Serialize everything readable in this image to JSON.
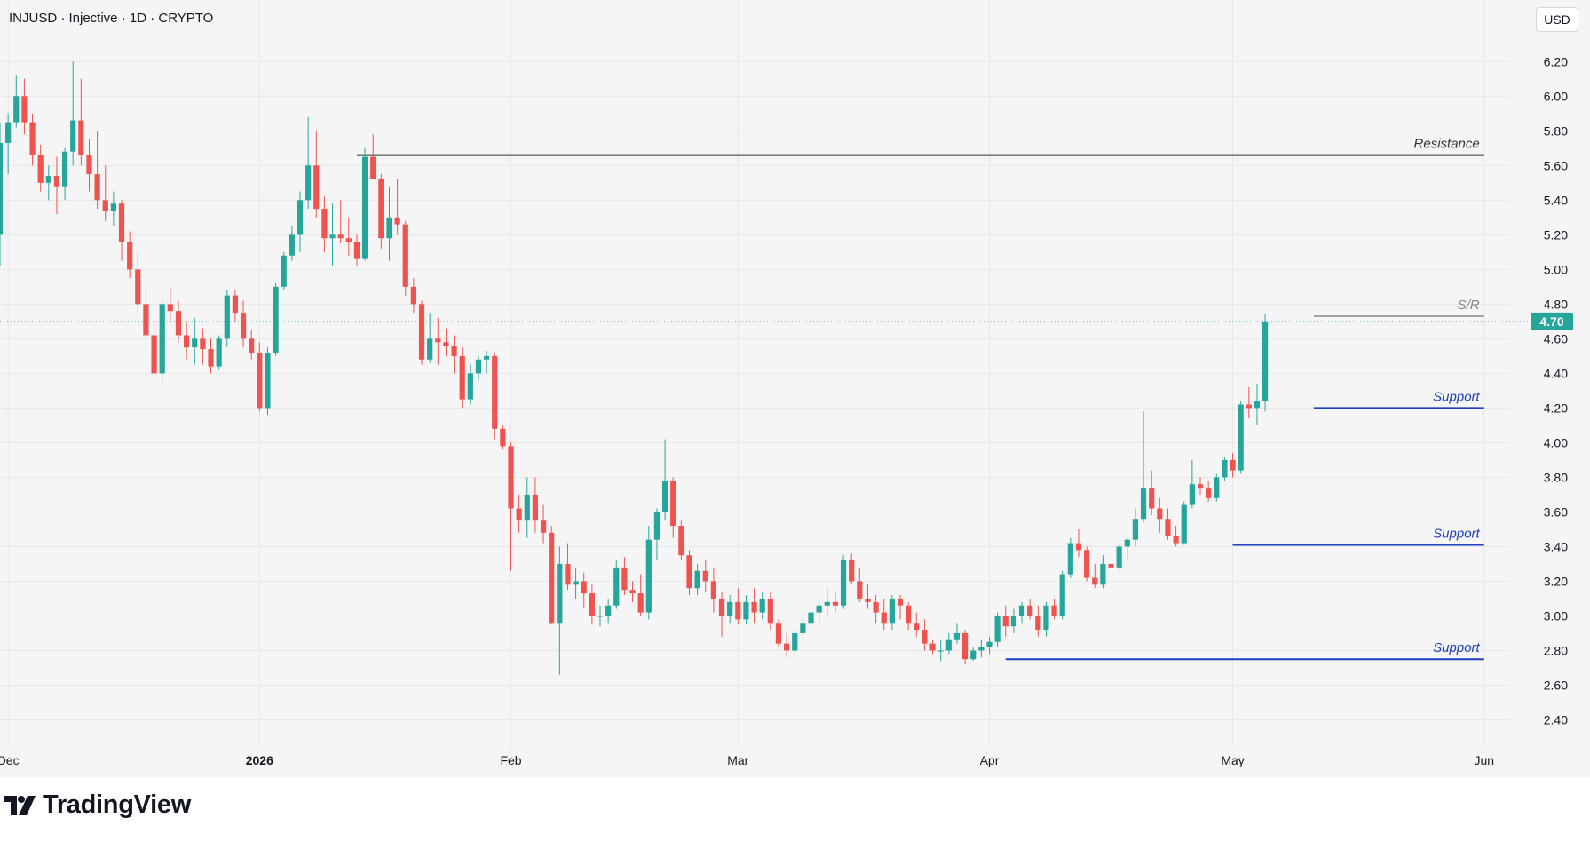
{
  "header": {
    "title": "INJUSD · Injective · 1D · CRYPTO"
  },
  "currency": "USD",
  "brand": {
    "logo_text": "TradingView"
  },
  "colors": {
    "up": "#26a69a",
    "down": "#ef5350",
    "support": "#1d3fbf",
    "resistance": "#333333",
    "sr": "#888888",
    "grid": "#e6e6e6",
    "background": "#f5f5f5"
  },
  "chart_data": {
    "type": "candlestick",
    "symbol": "INJUSD",
    "interval": "1D",
    "y_axis": {
      "min": 2.3,
      "max": 6.35,
      "ticks": [
        "2.40",
        "2.60",
        "2.80",
        "3.00",
        "3.20",
        "3.40",
        "3.60",
        "3.80",
        "4.00",
        "4.20",
        "4.40",
        "4.60",
        "4.80",
        "5.00",
        "5.20",
        "5.40",
        "5.60",
        "5.80",
        "6.00",
        "6.20"
      ]
    },
    "x_axis": {
      "start": "2025-11-30",
      "end": "2026-06-03",
      "ticks": [
        {
          "date": "2025-12-01",
          "label": "Dec",
          "bold": false
        },
        {
          "date": "2026-01-01",
          "label": "2026",
          "bold": true
        },
        {
          "date": "2026-02-01",
          "label": "Feb",
          "bold": false
        },
        {
          "date": "2026-03-01",
          "label": "Mar",
          "bold": false
        },
        {
          "date": "2026-04-01",
          "label": "Apr",
          "bold": false
        },
        {
          "date": "2026-05-01",
          "label": "May",
          "bold": false
        },
        {
          "date": "2026-06-01",
          "label": "Jun",
          "bold": false
        }
      ]
    },
    "last_price": {
      "value": 4.7,
      "label": "4.70"
    },
    "levels": [
      {
        "label": "Resistance",
        "price": 5.66,
        "start": "2026-01-13",
        "end": "2026-06-01",
        "kind": "resistance"
      },
      {
        "label": "S/R",
        "price": 4.73,
        "start": "2026-05-11",
        "end": "2026-06-01",
        "kind": "sr"
      },
      {
        "label": "Support",
        "price": 4.2,
        "start": "2026-05-11",
        "end": "2026-06-01",
        "kind": "support"
      },
      {
        "label": "Support",
        "price": 3.41,
        "start": "2026-05-01",
        "end": "2026-06-01",
        "kind": "support"
      },
      {
        "label": "Support",
        "price": 2.75,
        "start": "2026-04-03",
        "end": "2026-06-01",
        "kind": "support"
      }
    ],
    "candles_start": "2025-11-30",
    "candles": [
      [
        5.2,
        5.85,
        5.02,
        5.73
      ],
      [
        5.73,
        5.9,
        5.55,
        5.85
      ],
      [
        5.85,
        6.12,
        5.82,
        6.0
      ],
      [
        6.0,
        6.1,
        5.78,
        5.85
      ],
      [
        5.85,
        5.9,
        5.6,
        5.66
      ],
      [
        5.66,
        5.72,
        5.45,
        5.5
      ],
      [
        5.5,
        5.6,
        5.4,
        5.54
      ],
      [
        5.54,
        5.65,
        5.32,
        5.48
      ],
      [
        5.48,
        5.7,
        5.4,
        5.68
      ],
      [
        5.68,
        6.2,
        5.6,
        5.86
      ],
      [
        5.86,
        6.1,
        5.6,
        5.66
      ],
      [
        5.66,
        5.75,
        5.45,
        5.55
      ],
      [
        5.55,
        5.8,
        5.35,
        5.4
      ],
      [
        5.4,
        5.6,
        5.28,
        5.34
      ],
      [
        5.34,
        5.45,
        5.25,
        5.38
      ],
      [
        5.38,
        5.4,
        5.05,
        5.16
      ],
      [
        5.16,
        5.22,
        4.95,
        5.0
      ],
      [
        5.0,
        5.1,
        4.75,
        4.8
      ],
      [
        4.8,
        4.9,
        4.55,
        4.62
      ],
      [
        4.62,
        4.7,
        4.35,
        4.4
      ],
      [
        4.4,
        4.82,
        4.35,
        4.8
      ],
      [
        4.8,
        4.9,
        4.7,
        4.76
      ],
      [
        4.76,
        4.82,
        4.58,
        4.62
      ],
      [
        4.62,
        4.7,
        4.48,
        4.55
      ],
      [
        4.55,
        4.72,
        4.45,
        4.6
      ],
      [
        4.6,
        4.66,
        4.45,
        4.54
      ],
      [
        4.54,
        4.6,
        4.4,
        4.44
      ],
      [
        4.44,
        4.62,
        4.42,
        4.6
      ],
      [
        4.6,
        4.88,
        4.55,
        4.85
      ],
      [
        4.85,
        4.88,
        4.7,
        4.75
      ],
      [
        4.75,
        4.82,
        4.55,
        4.6
      ],
      [
        4.6,
        4.65,
        4.48,
        4.52
      ],
      [
        4.52,
        4.58,
        4.18,
        4.2
      ],
      [
        4.2,
        4.55,
        4.16,
        4.52
      ],
      [
        4.52,
        4.92,
        4.5,
        4.9
      ],
      [
        4.9,
        5.1,
        4.88,
        5.08
      ],
      [
        5.08,
        5.25,
        5.05,
        5.2
      ],
      [
        5.2,
        5.45,
        5.1,
        5.4
      ],
      [
        5.4,
        5.88,
        5.35,
        5.6
      ],
      [
        5.6,
        5.8,
        5.3,
        5.35
      ],
      [
        5.35,
        5.42,
        5.1,
        5.18
      ],
      [
        5.18,
        5.38,
        5.02,
        5.2
      ],
      [
        5.2,
        5.4,
        5.15,
        5.18
      ],
      [
        5.18,
        5.3,
        5.08,
        5.16
      ],
      [
        5.16,
        5.2,
        5.02,
        5.06
      ],
      [
        5.06,
        5.7,
        5.05,
        5.65
      ],
      [
        5.65,
        5.78,
        5.52,
        5.52
      ],
      [
        5.52,
        5.55,
        5.12,
        5.18
      ],
      [
        5.18,
        5.48,
        5.05,
        5.3
      ],
      [
        5.3,
        5.52,
        5.2,
        5.26
      ],
      [
        5.26,
        5.28,
        4.85,
        4.9
      ],
      [
        4.9,
        4.95,
        4.75,
        4.8
      ],
      [
        4.8,
        4.82,
        4.45,
        4.48
      ],
      [
        4.48,
        4.75,
        4.46,
        4.6
      ],
      [
        4.6,
        4.72,
        4.45,
        4.58
      ],
      [
        4.58,
        4.66,
        4.5,
        4.56
      ],
      [
        4.56,
        4.62,
        4.4,
        4.5
      ],
      [
        4.5,
        4.55,
        4.2,
        4.25
      ],
      [
        4.25,
        4.45,
        4.22,
        4.4
      ],
      [
        4.4,
        4.5,
        4.36,
        4.48
      ],
      [
        4.48,
        4.53,
        4.4,
        4.5
      ],
      [
        4.5,
        4.52,
        4.02,
        4.08
      ],
      [
        4.08,
        4.1,
        3.96,
        3.98
      ],
      [
        3.98,
        4.0,
        3.26,
        3.62
      ],
      [
        3.62,
        3.7,
        3.48,
        3.55
      ],
      [
        3.55,
        3.8,
        3.45,
        3.7
      ],
      [
        3.7,
        3.8,
        3.48,
        3.55
      ],
      [
        3.55,
        3.64,
        3.42,
        3.48
      ],
      [
        3.48,
        3.52,
        2.95,
        2.96
      ],
      [
        2.96,
        3.4,
        2.66,
        3.3
      ],
      [
        3.3,
        3.42,
        3.15,
        3.18
      ],
      [
        3.18,
        3.28,
        3.1,
        3.2
      ],
      [
        3.2,
        3.25,
        3.05,
        3.13
      ],
      [
        3.13,
        3.18,
        2.95,
        3.0
      ],
      [
        3.0,
        3.06,
        2.94,
        3.0
      ],
      [
        3.0,
        3.1,
        2.96,
        3.06
      ],
      [
        3.06,
        3.32,
        3.04,
        3.28
      ],
      [
        3.28,
        3.34,
        3.12,
        3.15
      ],
      [
        3.15,
        3.2,
        3.08,
        3.13
      ],
      [
        3.13,
        3.24,
        3.0,
        3.02
      ],
      [
        3.02,
        3.52,
        2.98,
        3.44
      ],
      [
        3.44,
        3.62,
        3.32,
        3.6
      ],
      [
        3.6,
        4.02,
        3.55,
        3.78
      ],
      [
        3.78,
        3.8,
        3.45,
        3.52
      ],
      [
        3.52,
        3.55,
        3.32,
        3.35
      ],
      [
        3.35,
        3.38,
        3.12,
        3.16
      ],
      [
        3.16,
        3.3,
        3.12,
        3.26
      ],
      [
        3.26,
        3.32,
        3.14,
        3.2
      ],
      [
        3.2,
        3.28,
        3.02,
        3.1
      ],
      [
        3.1,
        3.14,
        2.88,
        3.0
      ],
      [
        3.0,
        3.12,
        2.96,
        3.08
      ],
      [
        3.08,
        3.16,
        2.95,
        2.98
      ],
      [
        2.98,
        3.12,
        2.95,
        3.08
      ],
      [
        3.08,
        3.16,
        2.96,
        3.02
      ],
      [
        3.02,
        3.14,
        2.98,
        3.1
      ],
      [
        3.1,
        3.14,
        2.92,
        2.96
      ],
      [
        2.96,
        2.98,
        2.82,
        2.84
      ],
      [
        2.84,
        2.9,
        2.76,
        2.8
      ],
      [
        2.8,
        2.92,
        2.78,
        2.9
      ],
      [
        2.9,
        3.0,
        2.86,
        2.96
      ],
      [
        2.96,
        3.04,
        2.92,
        3.02
      ],
      [
        3.02,
        3.1,
        2.96,
        3.06
      ],
      [
        3.06,
        3.16,
        3.0,
        3.08
      ],
      [
        3.08,
        3.14,
        3.02,
        3.06
      ],
      [
        3.06,
        3.35,
        3.04,
        3.32
      ],
      [
        3.32,
        3.36,
        3.18,
        3.2
      ],
      [
        3.2,
        3.28,
        3.08,
        3.1
      ],
      [
        3.1,
        3.18,
        3.04,
        3.08
      ],
      [
        3.08,
        3.12,
        2.96,
        3.02
      ],
      [
        3.02,
        3.1,
        2.92,
        2.96
      ],
      [
        2.96,
        3.12,
        2.92,
        3.1
      ],
      [
        3.1,
        3.12,
        2.98,
        3.06
      ],
      [
        3.06,
        3.08,
        2.92,
        2.96
      ],
      [
        2.96,
        3.02,
        2.88,
        2.92
      ],
      [
        2.92,
        2.98,
        2.8,
        2.84
      ],
      [
        2.84,
        2.86,
        2.78,
        2.8
      ],
      [
        2.8,
        2.86,
        2.74,
        2.8
      ],
      [
        2.8,
        2.9,
        2.78,
        2.86
      ],
      [
        2.86,
        2.96,
        2.84,
        2.9
      ],
      [
        2.9,
        2.92,
        2.72,
        2.75
      ],
      [
        2.75,
        2.82,
        2.74,
        2.8
      ],
      [
        2.8,
        2.86,
        2.76,
        2.82
      ],
      [
        2.82,
        2.88,
        2.78,
        2.85
      ],
      [
        2.85,
        3.02,
        2.82,
        3.0
      ],
      [
        3.0,
        3.06,
        2.88,
        2.94
      ],
      [
        2.94,
        3.04,
        2.9,
        3.0
      ],
      [
        3.0,
        3.08,
        2.96,
        3.06
      ],
      [
        3.06,
        3.1,
        2.98,
        3.0
      ],
      [
        3.0,
        3.06,
        2.88,
        2.92
      ],
      [
        2.92,
        3.08,
        2.88,
        3.06
      ],
      [
        3.06,
        3.1,
        2.98,
        3.0
      ],
      [
        3.0,
        3.26,
        2.98,
        3.24
      ],
      [
        3.24,
        3.45,
        3.22,
        3.42
      ],
      [
        3.42,
        3.5,
        3.34,
        3.38
      ],
      [
        3.38,
        3.4,
        3.2,
        3.22
      ],
      [
        3.22,
        3.3,
        3.16,
        3.18
      ],
      [
        3.18,
        3.35,
        3.16,
        3.3
      ],
      [
        3.3,
        3.38,
        3.24,
        3.28
      ],
      [
        3.28,
        3.42,
        3.26,
        3.4
      ],
      [
        3.4,
        3.45,
        3.32,
        3.44
      ],
      [
        3.44,
        3.62,
        3.4,
        3.56
      ],
      [
        3.56,
        4.18,
        3.54,
        3.74
      ],
      [
        3.74,
        3.84,
        3.58,
        3.62
      ],
      [
        3.62,
        3.68,
        3.48,
        3.56
      ],
      [
        3.56,
        3.62,
        3.44,
        3.46
      ],
      [
        3.46,
        3.52,
        3.4,
        3.42
      ],
      [
        3.42,
        3.66,
        3.41,
        3.64
      ],
      [
        3.64,
        3.9,
        3.62,
        3.76
      ],
      [
        3.76,
        3.8,
        3.7,
        3.74
      ],
      [
        3.74,
        3.78,
        3.66,
        3.68
      ],
      [
        3.68,
        3.82,
        3.66,
        3.8
      ],
      [
        3.8,
        3.92,
        3.78,
        3.9
      ],
      [
        3.9,
        3.94,
        3.8,
        3.84
      ],
      [
        3.84,
        4.24,
        3.82,
        4.22
      ],
      [
        4.22,
        4.32,
        4.14,
        4.2
      ],
      [
        4.2,
        4.34,
        4.1,
        4.24
      ],
      [
        4.24,
        4.74,
        4.18,
        4.7
      ]
    ]
  }
}
